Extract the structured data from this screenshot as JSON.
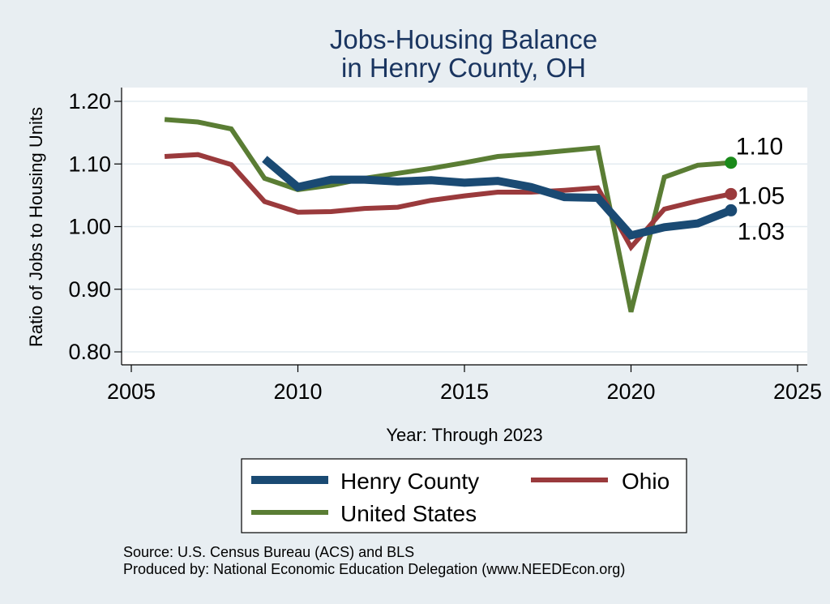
{
  "chart_data": {
    "type": "line",
    "title": [
      "Jobs-Housing Balance",
      "in Henry County, OH"
    ],
    "xlabel": "Year: Through 2023",
    "ylabel": "Ratio of Jobs to Housing Units",
    "xlim": [
      2005,
      2025
    ],
    "ylim": [
      0.8,
      1.22
    ],
    "xticks": [
      2005,
      2010,
      2015,
      2020,
      2025
    ],
    "xtick_labels": [
      "2005",
      "2010",
      "2015",
      "2020",
      "2025"
    ],
    "yticks": [
      0.8,
      0.9,
      1.0,
      1.1,
      1.2
    ],
    "ytick_labels": [
      "0.80",
      "0.90",
      "1.00",
      "1.10",
      "1.20"
    ],
    "grid": true,
    "series": [
      {
        "name": "Henry County",
        "color": "#1a4a73",
        "x": [
          2009,
          2010,
          2011,
          2012,
          2013,
          2014,
          2015,
          2016,
          2017,
          2018,
          2019,
          2020,
          2021,
          2022,
          2023
        ],
        "values": [
          1.108,
          1.063,
          1.075,
          1.075,
          1.072,
          1.074,
          1.07,
          1.073,
          1.063,
          1.047,
          1.046,
          0.986,
          0.999,
          1.005,
          1.026
        ],
        "end_label": "1.03",
        "end_marker_color": "#1a4a73"
      },
      {
        "name": "Ohio",
        "color": "#9a3a3c",
        "x": [
          2006,
          2007,
          2008,
          2009,
          2010,
          2011,
          2012,
          2013,
          2014,
          2015,
          2016,
          2017,
          2018,
          2019,
          2020,
          2021,
          2022,
          2023
        ],
        "values": [
          1.112,
          1.115,
          1.099,
          1.04,
          1.023,
          1.024,
          1.029,
          1.031,
          1.042,
          1.049,
          1.055,
          1.055,
          1.058,
          1.062,
          0.967,
          1.028,
          1.041,
          1.052
        ],
        "end_label": "1.05",
        "end_marker_color": "#9a3a3c"
      },
      {
        "name": "United States",
        "color": "#5a7d34",
        "x": [
          2006,
          2007,
          2008,
          2009,
          2010,
          2011,
          2012,
          2013,
          2014,
          2015,
          2016,
          2017,
          2018,
          2019,
          2020,
          2021,
          2022,
          2023
        ],
        "values": [
          1.171,
          1.167,
          1.156,
          1.077,
          1.059,
          1.066,
          1.077,
          1.085,
          1.093,
          1.102,
          1.112,
          1.116,
          1.121,
          1.126,
          0.864,
          1.079,
          1.098,
          1.102
        ],
        "end_label": "1.10",
        "end_marker_color": "#1a8a1a"
      }
    ],
    "legend": {
      "placement": "bottom",
      "entries": [
        "Henry County",
        "Ohio",
        "United States"
      ]
    }
  },
  "notes": {
    "source": "Source: U.S. Census Bureau (ACS) and BLS",
    "producer": "Produced by: National Economic Education Delegation (www.NEEDEcon.org)"
  },
  "colors": {
    "background": "#e8eef2",
    "plot_background": "#ffffff",
    "title": "#1a3560",
    "grid": "#e3ebf0"
  }
}
